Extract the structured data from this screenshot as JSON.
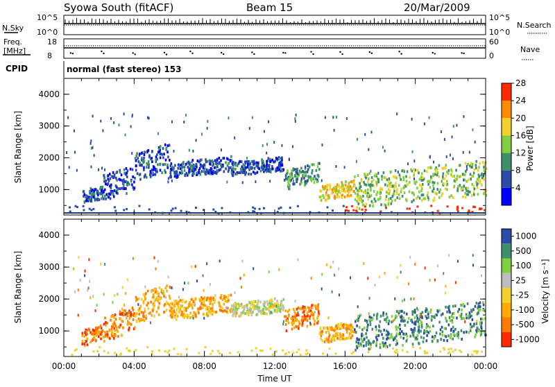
{
  "header": {
    "station": "Syowa South (fitACF)",
    "beam": "Beam 15",
    "date": "20/Mar/2009"
  },
  "top_panels": {
    "nsky_label": "N.Sky",
    "nsky_ticks": [
      "10^5",
      "10^0"
    ],
    "nsearch_label": "N.Search",
    "nsearch_ticks": [
      "10^5",
      "10^0"
    ],
    "freq_label_1": "Freq.",
    "freq_label_2": "[MHz]",
    "freq_ticks": [
      "18",
      "8"
    ],
    "nave_label": "Nave",
    "nave_ticks": [
      "60",
      "0"
    ],
    "cpid_label": "CPID",
    "cpid_text": "normal (fast stereo) 153"
  },
  "chart_data": [
    {
      "type": "heatmap",
      "name": "power-panel",
      "ylabel": "Slant Range [km]",
      "ylim": [
        200,
        4500
      ],
      "yticks": [
        "1000",
        "2000",
        "3000",
        "4000"
      ],
      "xlim": [
        0,
        24
      ],
      "colorbar_label": "Power [dB]",
      "colorbar_ticks": [
        "4",
        "8",
        "12",
        "16",
        "20",
        "24",
        "28"
      ],
      "colorbar_colors": [
        "#0000ff",
        "#2b4ba8",
        "#3f8f6a",
        "#7fcf3f",
        "#f2d12a",
        "#ff8c00",
        "#ff2a00"
      ],
      "bands": [
        {
          "t0": 1.0,
          "t1": 2.2,
          "r0": 620,
          "r1": 1050,
          "level": 1
        },
        {
          "t0": 2.2,
          "t1": 4.0,
          "r0": 800,
          "r1": 1600,
          "level": 1
        },
        {
          "t0": 4.0,
          "t1": 6.0,
          "r0": 1400,
          "r1": 2300,
          "level": 1
        },
        {
          "t0": 6.0,
          "t1": 9.5,
          "r0": 1450,
          "r1": 1950,
          "level": 1
        },
        {
          "t0": 9.5,
          "t1": 12.5,
          "r0": 1500,
          "r1": 1950,
          "level": 1
        },
        {
          "t0": 12.5,
          "t1": 14.5,
          "r0": 1100,
          "r1": 1750,
          "level": 2
        },
        {
          "t0": 14.5,
          "t1": 16.5,
          "r0": 700,
          "r1": 1200,
          "level": 4
        },
        {
          "t0": 16.5,
          "t1": 24.0,
          "r0": 600,
          "r1": 1700,
          "level": 3
        }
      ]
    },
    {
      "type": "heatmap",
      "name": "velocity-panel",
      "ylabel": "Slant Range [km]",
      "ylim": [
        200,
        4500
      ],
      "yticks": [
        "1000",
        "2000",
        "3000",
        "4000"
      ],
      "xlim": [
        0,
        24
      ],
      "xticks": [
        "00:00",
        "04:00",
        "08:00",
        "12:00",
        "16:00",
        "20:00",
        "00:00"
      ],
      "xlabel": "Time UT",
      "colorbar_label": "Velocity [m s⁻¹]",
      "colorbar_ticks": [
        "1000",
        "500",
        "100",
        "25",
        "-25",
        "-100",
        "-500",
        "-1000"
      ],
      "colorbar_colors": [
        "#2b4ba8",
        "#3f8f6a",
        "#7fcf3f",
        "#bdbdbd",
        "#f2d12a",
        "#ffaa00",
        "#ff7a00",
        "#ff2a00"
      ],
      "bands": [
        {
          "t0": 1.0,
          "t1": 2.2,
          "r0": 600,
          "r1": 1100,
          "level": 6
        },
        {
          "t0": 2.2,
          "t1": 4.0,
          "r0": 800,
          "r1": 1600,
          "level": 6
        },
        {
          "t0": 4.0,
          "t1": 6.0,
          "r0": 1400,
          "r1": 2300,
          "level": 5
        },
        {
          "t0": 6.0,
          "t1": 9.5,
          "r0": 1450,
          "r1": 2050,
          "level": 5
        },
        {
          "t0": 9.5,
          "t1": 12.5,
          "r0": 1500,
          "r1": 1950,
          "level": 3
        },
        {
          "t0": 12.5,
          "t1": 14.5,
          "r0": 1100,
          "r1": 1750,
          "level": 6
        },
        {
          "t0": 14.5,
          "t1": 16.5,
          "r0": 700,
          "r1": 1200,
          "level": 5
        },
        {
          "t0": 16.5,
          "t1": 24.0,
          "r0": 600,
          "r1": 1700,
          "level": 1
        }
      ]
    }
  ]
}
